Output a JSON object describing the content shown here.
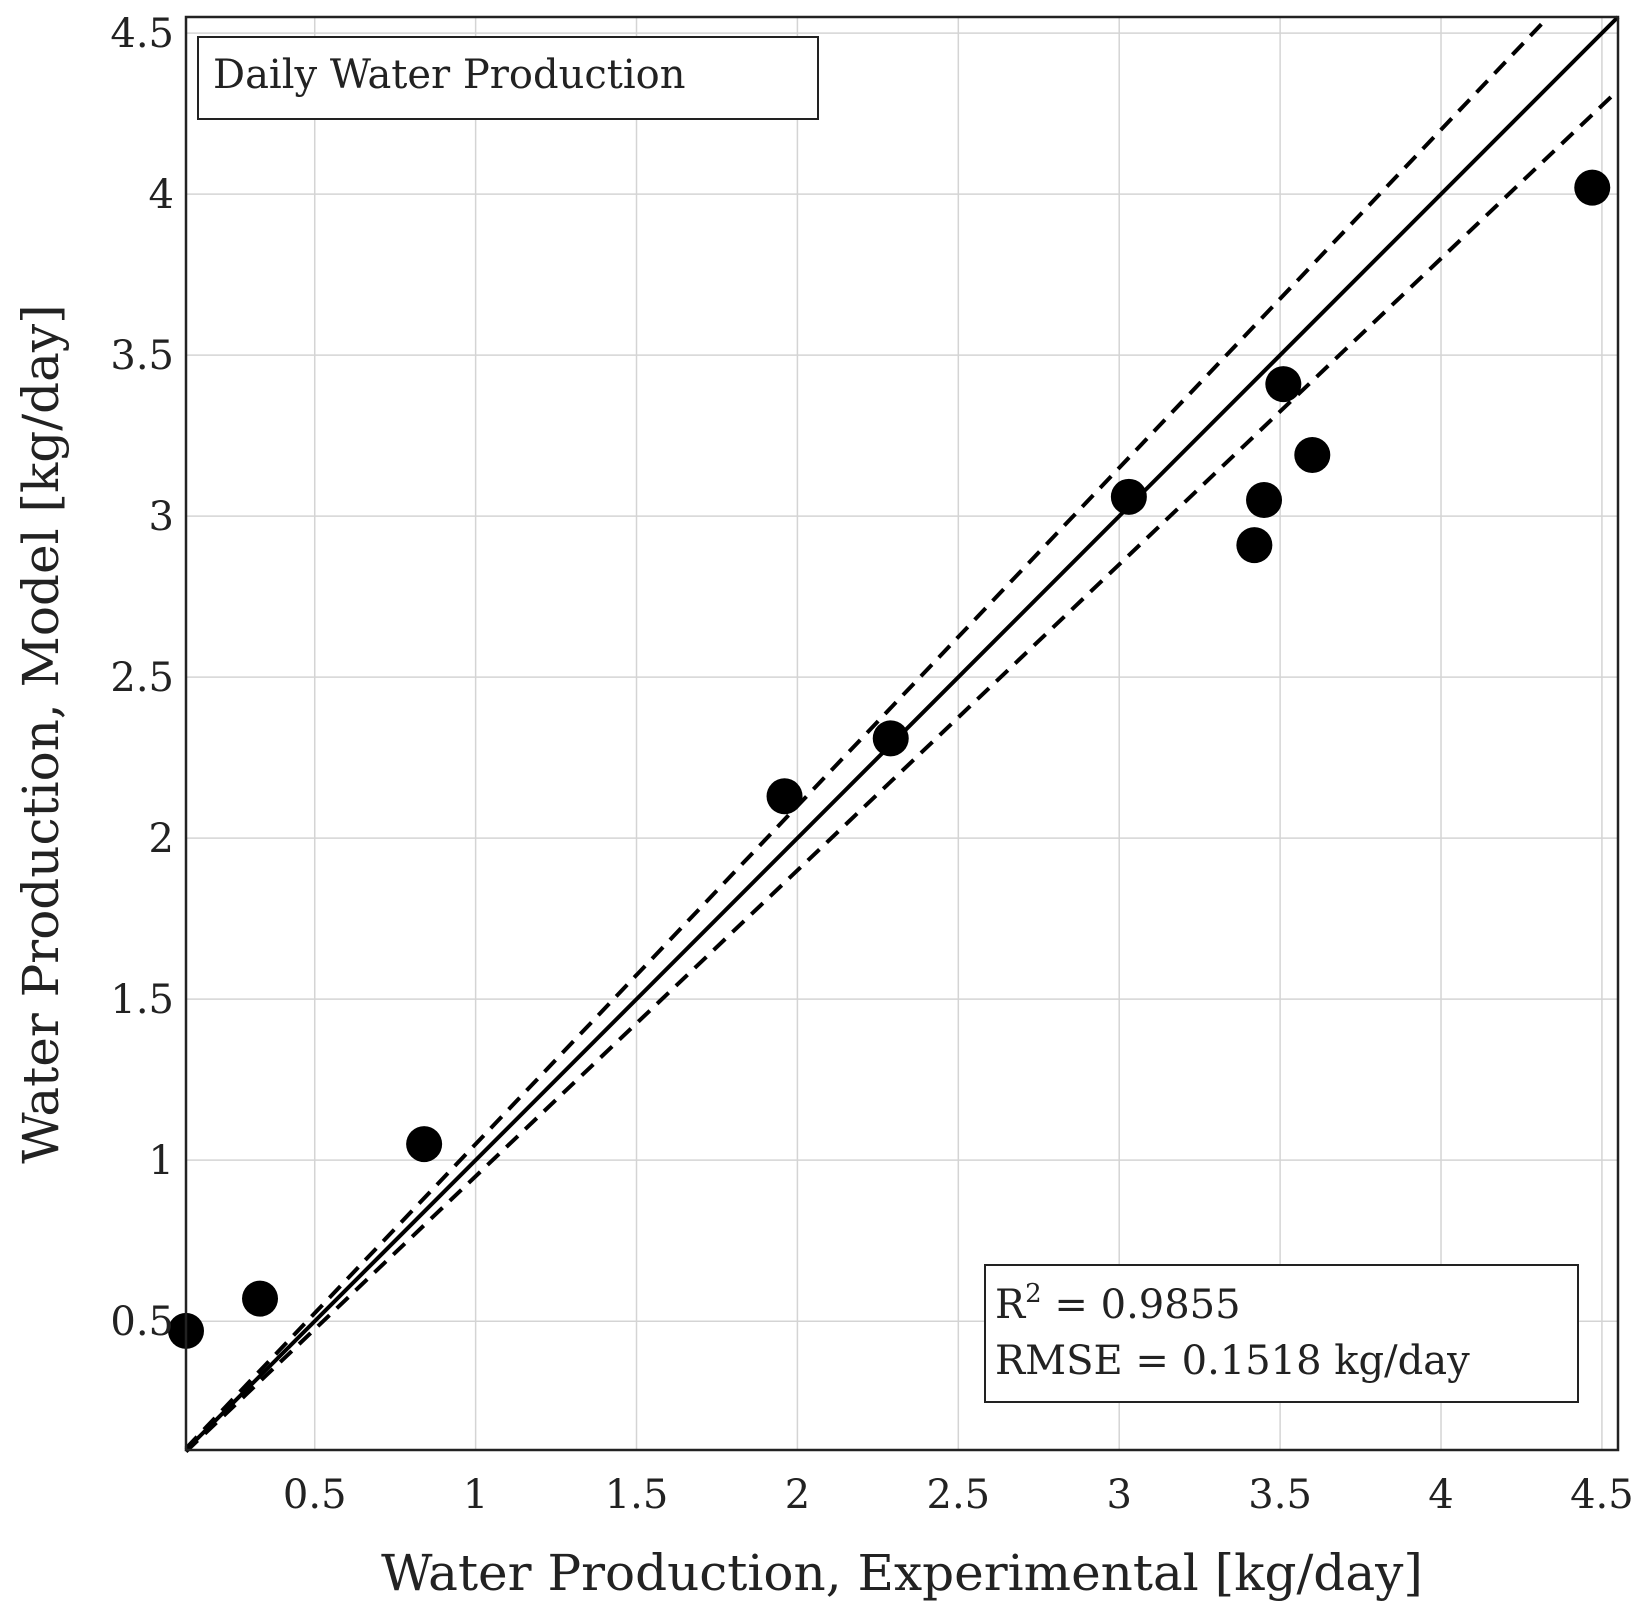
{
  "chart_data": {
    "type": "scatter",
    "title": "Daily Water Production",
    "xlabel": "Water Production, Experimental [kg/day]",
    "ylabel": "Water Production, Model [kg/day]",
    "xlim": [
      0.1,
      4.55
    ],
    "ylim": [
      0.1,
      4.55
    ],
    "grid": true,
    "xticks": [
      0.5,
      1,
      1.5,
      2,
      2.5,
      3,
      3.5,
      4,
      4.5
    ],
    "yticks": [
      0.5,
      1,
      1.5,
      2,
      2.5,
      3,
      3.5,
      4,
      4.5
    ],
    "xtick_labels": [
      "0.5",
      "1",
      "1.5",
      "2",
      "2.5",
      "3",
      "3.5",
      "4",
      "4.5"
    ],
    "ytick_labels": [
      "0.5",
      "1",
      "1.5",
      "2",
      "2.5",
      "3",
      "3.5",
      "4",
      "4.5"
    ],
    "series": [
      {
        "name": "Daily Water Production",
        "points": [
          {
            "x": 0.1,
            "y": 0.47
          },
          {
            "x": 0.33,
            "y": 0.57
          },
          {
            "x": 0.84,
            "y": 1.05
          },
          {
            "x": 1.96,
            "y": 2.13
          },
          {
            "x": 2.29,
            "y": 2.31
          },
          {
            "x": 3.03,
            "y": 3.06
          },
          {
            "x": 3.42,
            "y": 2.91
          },
          {
            "x": 3.45,
            "y": 3.05
          },
          {
            "x": 3.51,
            "y": 3.41
          },
          {
            "x": 3.6,
            "y": 3.19
          },
          {
            "x": 4.47,
            "y": 4.02
          }
        ]
      }
    ],
    "reference_lines": [
      {
        "name": "1:1 line",
        "slope": 1.0,
        "style": "solid"
      },
      {
        "name": "upper bound",
        "slope": 1.05,
        "style": "dashed"
      },
      {
        "name": "lower bound",
        "slope": 0.95,
        "style": "dashed"
      }
    ],
    "legend": {
      "label": "Daily Water Production",
      "placement": "top-left"
    },
    "stats": {
      "r2_label": "R",
      "r2_superscript": "2",
      "r2_value_text": " = 0.9855",
      "rmse_text": "RMSE = 0.1518 kg/day",
      "placement": "bottom-right"
    }
  }
}
